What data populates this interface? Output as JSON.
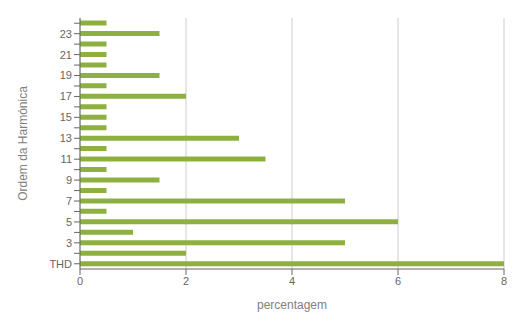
{
  "chart_data": {
    "type": "bar",
    "orientation": "horizontal",
    "categories": [
      "THD",
      null,
      "3",
      null,
      "5",
      null,
      "7",
      null,
      "9",
      null,
      "11",
      null,
      "13",
      null,
      "15",
      null,
      "17",
      null,
      "19",
      null,
      "21",
      null,
      "23",
      null
    ],
    "values": [
      8,
      2,
      5,
      1,
      6,
      0.5,
      5,
      0.5,
      1.5,
      0.5,
      3.5,
      0.5,
      3,
      0.5,
      0.5,
      0.5,
      2,
      0.5,
      1.5,
      0.5,
      0.5,
      0.5,
      1.5,
      0.5
    ],
    "color": "#8DB040",
    "xlabel": "percentagem",
    "ylabel": "Ordem da Harmónica",
    "xlim": [
      0,
      8
    ],
    "xticks": [
      0,
      2,
      4,
      6,
      8
    ],
    "grid": true
  }
}
